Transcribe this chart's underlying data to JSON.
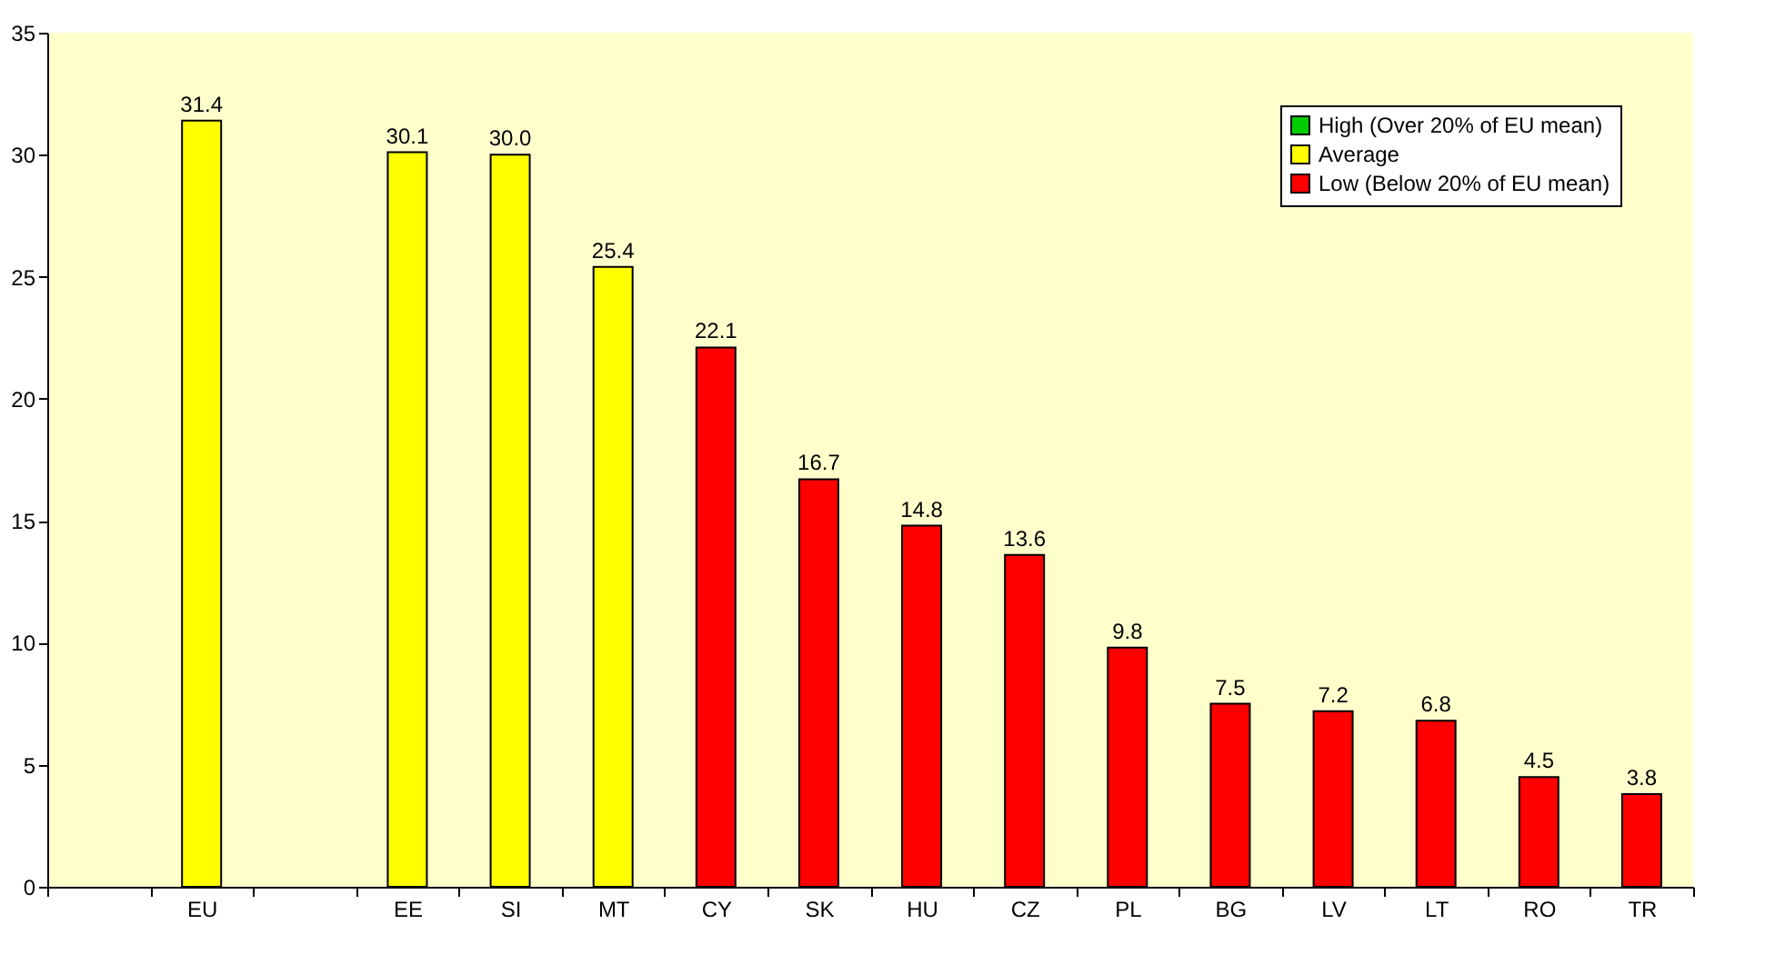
{
  "chart_data": {
    "type": "bar",
    "stacked": true,
    "categories": [
      null,
      "EU",
      null,
      "EE",
      "SI",
      "MT",
      "CY",
      "SK",
      "HU",
      "CZ",
      "PL",
      "BG",
      "LV",
      "LT",
      "RO",
      "TR"
    ],
    "series": [
      {
        "name": "High (Over 20% of EU mean)",
        "color": "#00cc00",
        "values": [
          null,
          null,
          null,
          null,
          null,
          null,
          null,
          null,
          null,
          null,
          null,
          null,
          null,
          null,
          null,
          null
        ]
      },
      {
        "name": "Average",
        "color": "#ffff00",
        "values": [
          null,
          31.4,
          null,
          30.1,
          30.0,
          25.4,
          null,
          null,
          null,
          null,
          null,
          null,
          null,
          null,
          null,
          null
        ],
        "value_labels": [
          null,
          "31.4",
          null,
          "30.1",
          "30.0",
          "25.4",
          null,
          null,
          null,
          null,
          null,
          null,
          null,
          null,
          null,
          null
        ]
      },
      {
        "name": "Low (Below 20% of EU mean)",
        "color": "#ff0000",
        "values": [
          null,
          null,
          null,
          null,
          null,
          null,
          22.1,
          16.7,
          14.8,
          13.6,
          9.8,
          7.5,
          7.2,
          6.8,
          4.5,
          3.8
        ],
        "value_labels": [
          null,
          null,
          null,
          null,
          null,
          null,
          "22.1",
          "16.7",
          "14.8",
          "13.6",
          "9.8",
          "7.5",
          "7.2",
          "6.8",
          "4.5",
          "3.8"
        ]
      }
    ],
    "ylim": [
      0,
      35
    ],
    "yticks": [
      0,
      5,
      10,
      15,
      20,
      25,
      30,
      35
    ],
    "legend": "top right",
    "grid": false
  }
}
